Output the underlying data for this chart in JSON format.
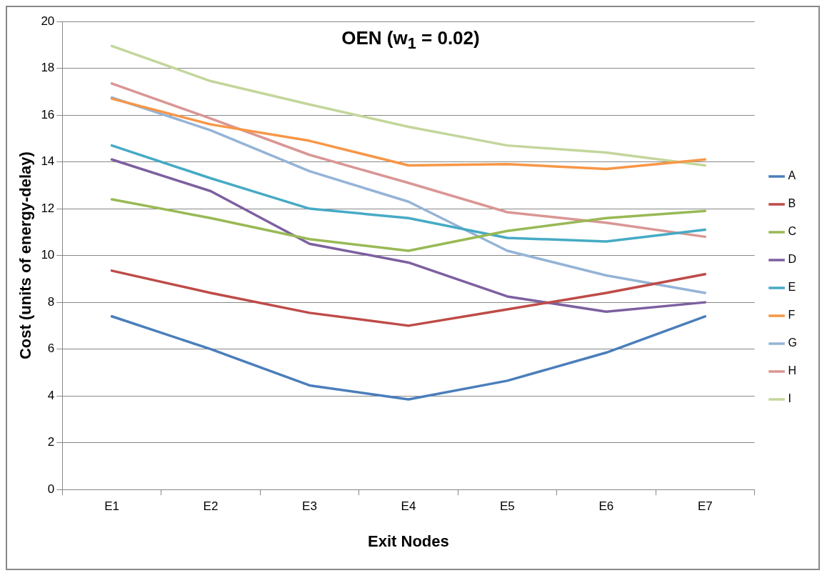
{
  "chart_data": {
    "type": "line",
    "title": "OEN (w$_{1}$ = 0.02)",
    "xlabel": "Exit Nodes",
    "ylabel": "Cost (units of energy-delay)",
    "categories": [
      "E1",
      "E2",
      "E3",
      "E4",
      "E5",
      "E6",
      "E7"
    ],
    "series": [
      {
        "name": "A",
        "color": "#4a7ebb",
        "values": [
          7.4,
          6.0,
          4.45,
          3.85,
          4.65,
          5.85,
          7.4
        ]
      },
      {
        "name": "B",
        "color": "#be4b48",
        "values": [
          9.35,
          8.4,
          7.55,
          7.0,
          7.7,
          8.4,
          9.2
        ]
      },
      {
        "name": "C",
        "color": "#98b954",
        "values": [
          12.4,
          11.6,
          10.7,
          10.2,
          11.05,
          11.6,
          11.9
        ]
      },
      {
        "name": "D",
        "color": "#7d5fa0",
        "values": [
          14.1,
          12.75,
          10.5,
          9.7,
          8.25,
          7.6,
          8.0
        ]
      },
      {
        "name": "E",
        "color": "#46aac5",
        "values": [
          14.7,
          13.3,
          12.0,
          11.6,
          10.75,
          10.6,
          11.1
        ]
      },
      {
        "name": "F",
        "color": "#f79646",
        "values": [
          16.7,
          15.6,
          14.9,
          13.85,
          13.9,
          13.7,
          14.1
        ]
      },
      {
        "name": "G",
        "color": "#95b3d7",
        "values": [
          16.75,
          15.35,
          13.6,
          12.3,
          10.2,
          9.15,
          8.4
        ]
      },
      {
        "name": "H",
        "color": "#d99694",
        "values": [
          17.35,
          15.85,
          14.3,
          13.1,
          11.85,
          11.4,
          10.8
        ]
      },
      {
        "name": "I",
        "color": "#c3d69b",
        "values": [
          18.95,
          17.45,
          16.45,
          15.5,
          14.7,
          14.4,
          13.85
        ]
      }
    ],
    "ylim": [
      0,
      20
    ],
    "yticks": [
      0,
      2,
      4,
      6,
      8,
      10,
      12,
      14,
      16,
      18,
      20
    ],
    "grid": "y",
    "legend": "right",
    "marker": "none",
    "line_style": "solid"
  }
}
